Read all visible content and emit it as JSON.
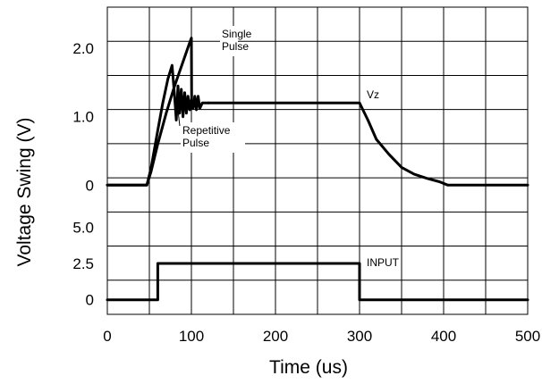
{
  "chart_data": {
    "type": "line",
    "xlabel": "Time (us)",
    "ylabel": "Voltage Swing (V)",
    "xlim": [
      0,
      500
    ],
    "x_ticks": [
      "0",
      "100",
      "200",
      "300",
      "400",
      "500"
    ],
    "upper_panel": {
      "ylim": [
        -0.4,
        2.6
      ],
      "y_ticks": [
        "0",
        "1.0",
        "2.0"
      ]
    },
    "lower_panel": {
      "ylim": [
        -1.0,
        6.0
      ],
      "y_ticks": [
        "0",
        "2.5",
        "5.0"
      ]
    },
    "grid": true,
    "series": [
      {
        "name": "Single Pulse",
        "panel": "upper",
        "x": [
          0,
          47,
          52,
          60,
          70,
          80,
          90,
          97,
          100,
          100.3
        ],
        "y": [
          0,
          0,
          0.2,
          0.6,
          1.05,
          1.45,
          1.8,
          2.05,
          2.15,
          1.2
        ]
      },
      {
        "name": "Repetitive Pulse",
        "panel": "upper",
        "x": [
          0,
          47,
          52,
          60,
          66,
          72,
          77,
          80,
          82,
          84,
          86,
          88,
          90,
          92,
          94,
          96,
          98,
          100,
          102,
          104,
          106,
          108,
          110,
          113,
          116,
          120
        ],
        "y": [
          0,
          0,
          0.25,
          0.8,
          1.2,
          1.55,
          1.75,
          1.3,
          0.95,
          1.45,
          1.05,
          1.4,
          1.0,
          1.35,
          1.05,
          1.3,
          1.1,
          1.25,
          1.12,
          1.3,
          1.1,
          1.3,
          1.12,
          1.2,
          1.2,
          1.2
        ]
      },
      {
        "name": "Vz",
        "panel": "upper",
        "x": [
          120,
          300,
          310,
          320,
          335,
          350,
          365,
          380,
          395,
          405,
          500
        ],
        "y": [
          1.2,
          1.2,
          0.95,
          0.67,
          0.45,
          0.26,
          0.16,
          0.1,
          0.05,
          0,
          0
        ]
      },
      {
        "name": "INPUT",
        "panel": "lower",
        "x": [
          0,
          60,
          60,
          300,
          300,
          500
        ],
        "y": [
          0,
          0,
          2.5,
          2.5,
          0,
          0
        ]
      }
    ],
    "annotations": [
      {
        "key": "single",
        "lines": [
          "Single",
          "Pulse"
        ]
      },
      {
        "key": "repetitive",
        "lines": [
          "Repetitive",
          "Pulse"
        ]
      },
      {
        "key": "vz",
        "lines": [
          "Vz"
        ]
      },
      {
        "key": "input",
        "lines": [
          "INPUT"
        ]
      }
    ]
  }
}
